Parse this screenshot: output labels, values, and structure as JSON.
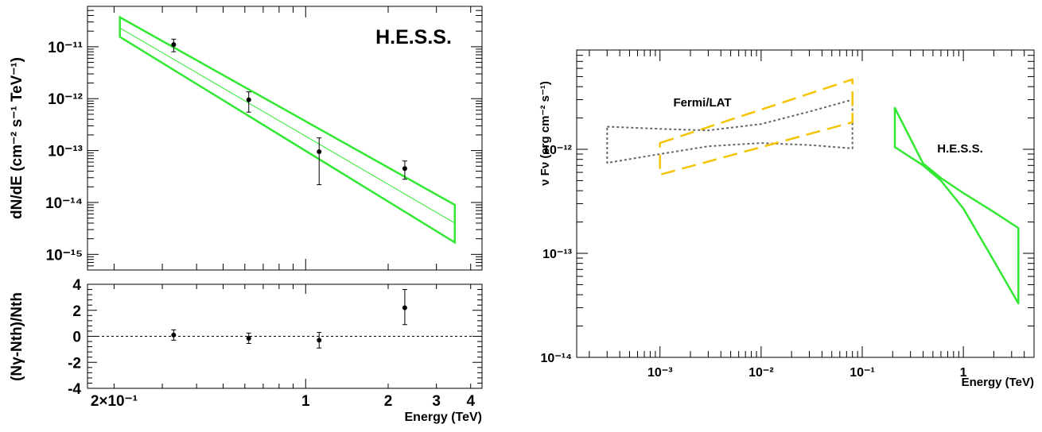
{
  "chart_data": [
    {
      "type": "scatter",
      "panel": "left-spectrum",
      "title": "H.E.S.S.",
      "ylabel": "dN/dE (cm⁻² s⁻¹ TeV⁻¹)",
      "xscale": "log",
      "yscale": "log",
      "xlim": [
        0.16,
        4.4
      ],
      "ylim": [
        5e-16,
        6e-11
      ],
      "grid": false,
      "y_ticks": [
        {
          "value": 1e-11,
          "label": "10⁻¹¹"
        },
        {
          "value": 1e-12,
          "label": "10⁻¹²"
        },
        {
          "value": 1e-13,
          "label": "10⁻¹³"
        },
        {
          "value": 1e-14,
          "label": "10⁻¹⁴"
        },
        {
          "value": 1e-15,
          "label": "10⁻¹⁵"
        }
      ],
      "points": [
        {
          "x": 0.33,
          "y": 1.1e-11,
          "ylo": 8e-12,
          "yhi": 1.4e-11
        },
        {
          "x": 0.62,
          "y": 9.5e-13,
          "ylo": 5.5e-13,
          "yhi": 1.35e-12
        },
        {
          "x": 1.12,
          "y": 9.5e-14,
          "ylo": 2.2e-14,
          "yhi": 1.75e-13
        },
        {
          "x": 2.3,
          "y": 4.5e-14,
          "ylo": 2.8e-14,
          "yhi": 6.3e-14
        }
      ],
      "fit_band": {
        "color": "#33e833",
        "x": [
          0.21,
          3.5
        ],
        "upper": [
          3.7e-11,
          9e-15
        ],
        "lower": [
          1.55e-11,
          1.7e-15
        ],
        "best": [
          2.3e-11,
          4e-15
        ]
      }
    },
    {
      "type": "scatter",
      "panel": "left-residuals",
      "ylabel": "(Nγ-Nth)/Nth",
      "xlabel": "Energy (TeV)",
      "xscale": "log",
      "xlim": [
        0.16,
        4.4
      ],
      "ylim": [
        -4,
        4
      ],
      "x_ticks": [
        {
          "value": 0.2,
          "label": "2×10⁻¹"
        },
        {
          "value": 1,
          "label": "1"
        },
        {
          "value": 2,
          "label": "2"
        },
        {
          "value": 3,
          "label": "3"
        },
        {
          "value": 4,
          "label": "4"
        }
      ],
      "y_ticks": [
        {
          "value": 4,
          "label": "4"
        },
        {
          "value": 2,
          "label": "2"
        },
        {
          "value": 0,
          "label": "0"
        },
        {
          "value": -2,
          "label": "-2"
        },
        {
          "value": -4,
          "label": "-4"
        }
      ],
      "reference_line": 0,
      "points": [
        {
          "x": 0.33,
          "y": 0.1,
          "ylo": -0.3,
          "yhi": 0.5
        },
        {
          "x": 0.62,
          "y": -0.15,
          "ylo": -0.55,
          "yhi": 0.25
        },
        {
          "x": 1.12,
          "y": -0.3,
          "ylo": -0.9,
          "yhi": 0.3
        },
        {
          "x": 2.3,
          "y": 2.2,
          "ylo": 0.9,
          "yhi": 3.6
        }
      ]
    },
    {
      "type": "area",
      "panel": "right-sed",
      "ylabel": "ν Fν (erg cm⁻² s⁻¹)",
      "xlabel": "Energy (TeV)",
      "xscale": "log",
      "yscale": "log",
      "xlim": [
        0.00015,
        5
      ],
      "ylim": [
        1e-14,
        9e-12
      ],
      "x_ticks": [
        {
          "value": 0.001,
          "label": "10⁻³"
        },
        {
          "value": 0.01,
          "label": "10⁻²"
        },
        {
          "value": 0.1,
          "label": "10⁻¹"
        },
        {
          "value": 1,
          "label": "1"
        }
      ],
      "y_ticks": [
        {
          "value": 1e-12,
          "label": "10⁻¹²"
        },
        {
          "value": 1e-13,
          "label": "10⁻¹³"
        },
        {
          "value": 1e-14,
          "label": "10⁻¹⁴"
        }
      ],
      "series": [
        {
          "name": "Fermi/LAT",
          "style": "dotted",
          "color": "#666666",
          "upper": [
            [
              0.0003,
              1.65e-12
            ],
            [
              0.001,
              1.57e-12
            ],
            [
              0.003,
              1.52e-12
            ],
            [
              0.01,
              1.75e-12
            ],
            [
              0.03,
              2.3e-12
            ],
            [
              0.08,
              3e-12
            ]
          ],
          "lower": [
            [
              0.0003,
              7.4e-13
            ],
            [
              0.001,
              9e-13
            ],
            [
              0.003,
              1.07e-12
            ],
            [
              0.01,
              1.15e-12
            ],
            [
              0.03,
              1.1e-12
            ],
            [
              0.08,
              1.02e-12
            ]
          ]
        },
        {
          "name": "",
          "style": "dashed",
          "color": "#f5c400",
          "upper": [
            [
              0.001,
              1.15e-12
            ],
            [
              0.08,
              4.7e-12
            ]
          ],
          "lower": [
            [
              0.001,
              5.7e-13
            ],
            [
              0.08,
              1.82e-12
            ]
          ]
        },
        {
          "name": "H.E.S.S.",
          "style": "solid",
          "color": "#33e833",
          "upper": [
            [
              0.21,
              2.5e-12
            ],
            [
              0.4,
              7.3e-13
            ],
            [
              0.6,
              5.3e-13
            ],
            [
              1.0,
              3.8e-13
            ],
            [
              2.0,
              2.5e-13
            ],
            [
              3.5,
              1.75e-13
            ]
          ],
          "lower": [
            [
              0.21,
              1.05e-12
            ],
            [
              0.4,
              7e-13
            ],
            [
              0.6,
              5e-13
            ],
            [
              1.0,
              2.7e-13
            ],
            [
              2.0,
              8.5e-14
            ],
            [
              3.5,
              3.3e-14
            ]
          ]
        }
      ]
    }
  ]
}
